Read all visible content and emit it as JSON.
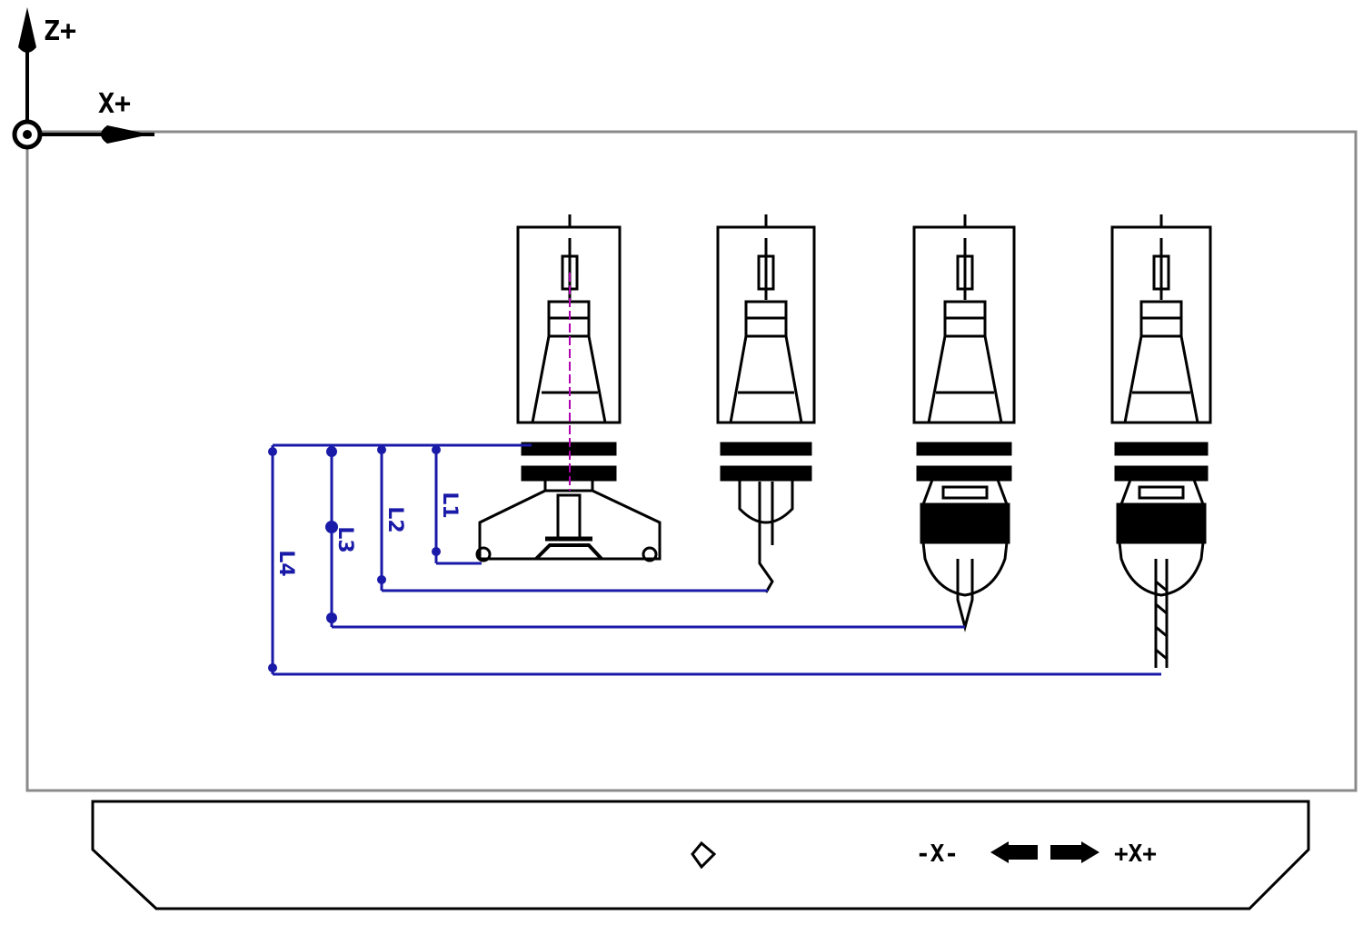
{
  "axes": {
    "z_label": "Z+",
    "x_label": "X+"
  },
  "tools": [
    {
      "id": "t1",
      "kind": "face-mill",
      "dimension_label": "L1"
    },
    {
      "id": "t2",
      "kind": "drill-chuck",
      "dimension_label": "L2"
    },
    {
      "id": "t3",
      "kind": "tapping-chuck",
      "dimension_label": "L3"
    },
    {
      "id": "t4",
      "kind": "tapping-chuck",
      "dimension_label": "L4"
    }
  ],
  "base_panel": {
    "minus_x_label": "-X-",
    "plus_x_label": "+X+"
  },
  "colors": {
    "line": "#000000",
    "dimension": "#1a1aa8",
    "centerline": "#b000b0",
    "frame": "#8a8a8a"
  }
}
